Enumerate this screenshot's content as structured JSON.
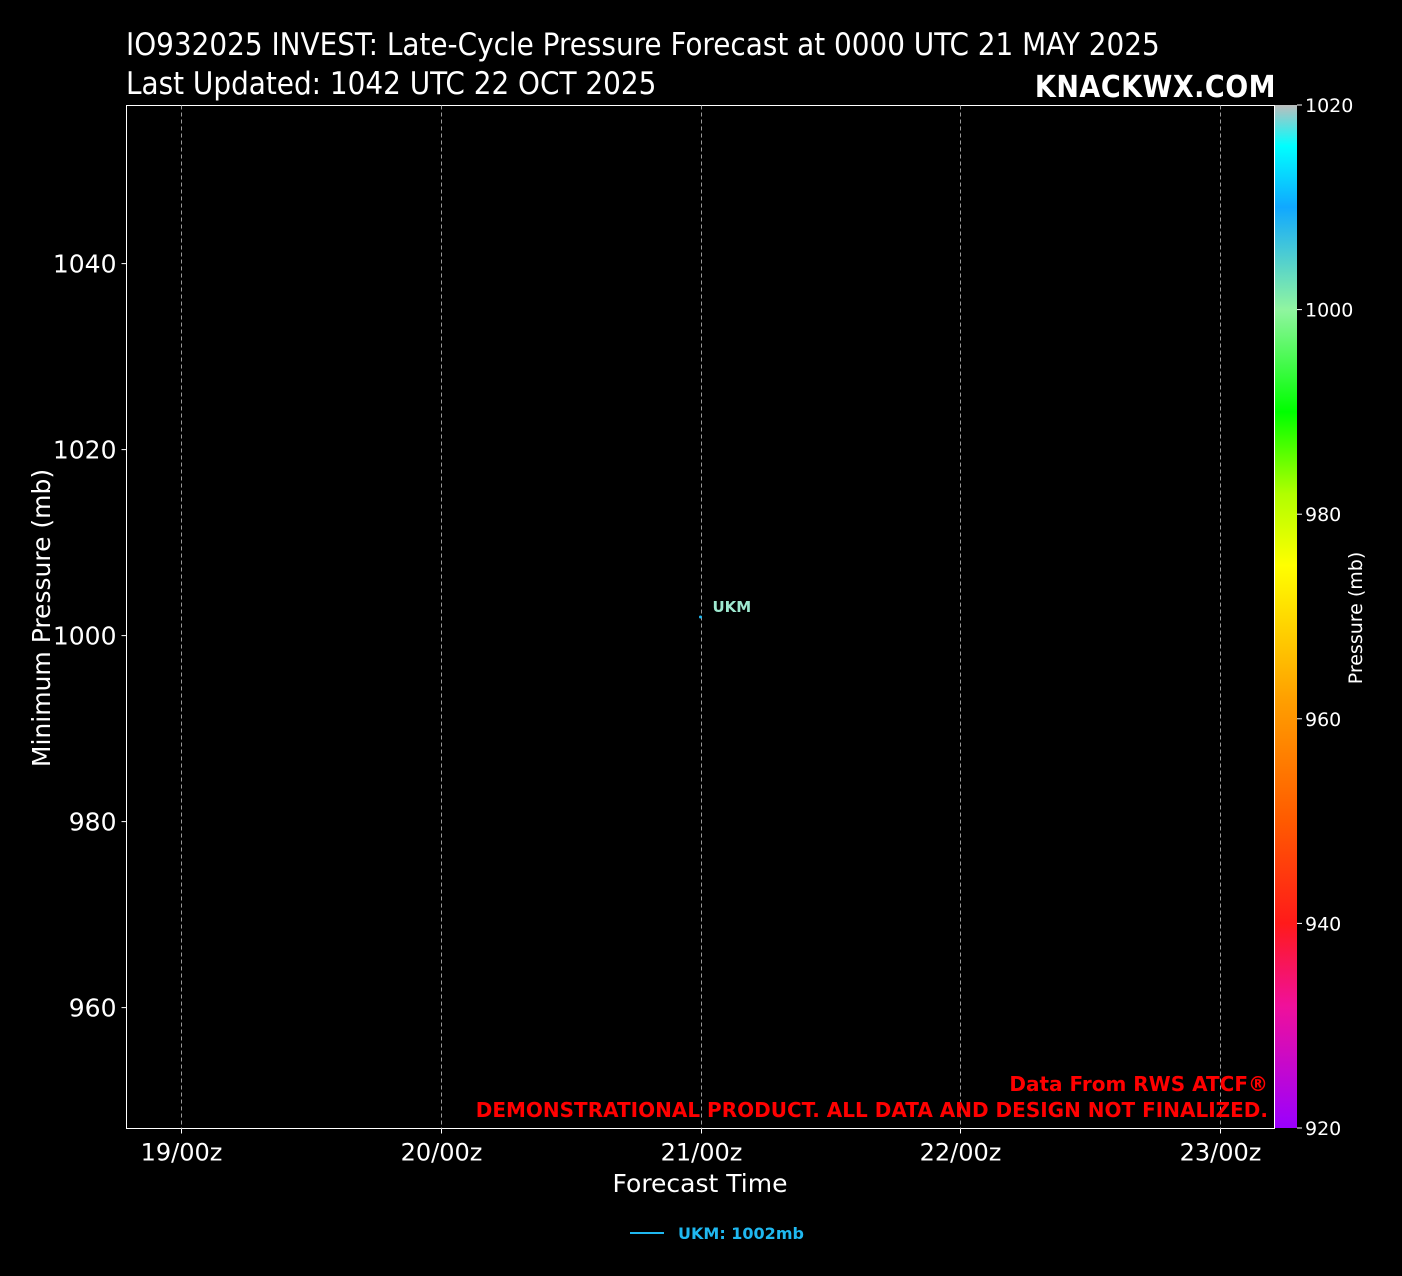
{
  "header": {
    "title_line1": "IO932025 INVEST: Late-Cycle Pressure Forecast at 0000 UTC 21 MAY 2025",
    "title_line2": "Last Updated: 1042 UTC 22 OCT 2025",
    "brand": "KNACKWX.COM"
  },
  "chart_data": {
    "type": "line",
    "xlabel": "Forecast Time",
    "ylabel": "Minimum Pressure (mb)",
    "x_ticks": [
      "19/00z",
      "20/00z",
      "21/00z",
      "22/00z",
      "23/00z"
    ],
    "xlim": [
      "18/19z",
      "23/05z"
    ],
    "y_ticks": [
      960,
      980,
      1000,
      1020,
      1040
    ],
    "ylim": [
      947,
      1057
    ],
    "grid": "vertical dashed",
    "series": [
      {
        "name": "UKM",
        "label": "UKM: 1002mb",
        "color": "#1fb8f0",
        "points": [
          {
            "x": "21/00z",
            "y": 1002
          }
        ]
      }
    ],
    "point_label": {
      "text": "UKM",
      "color": "#9ee8cf"
    },
    "colorbar": {
      "label": "Pressure (mb)",
      "ticks": [
        920,
        940,
        960,
        980,
        1000,
        1020
      ],
      "range": [
        920,
        1020
      ]
    },
    "legend": "bottom-center",
    "annotations": {
      "source": "Data From RWS ATCF®",
      "disclaimer": "DEMONSTRATIONAL PRODUCT. ALL DATA AND DESIGN NOT FINALIZED.",
      "color": "#ff0000"
    }
  }
}
